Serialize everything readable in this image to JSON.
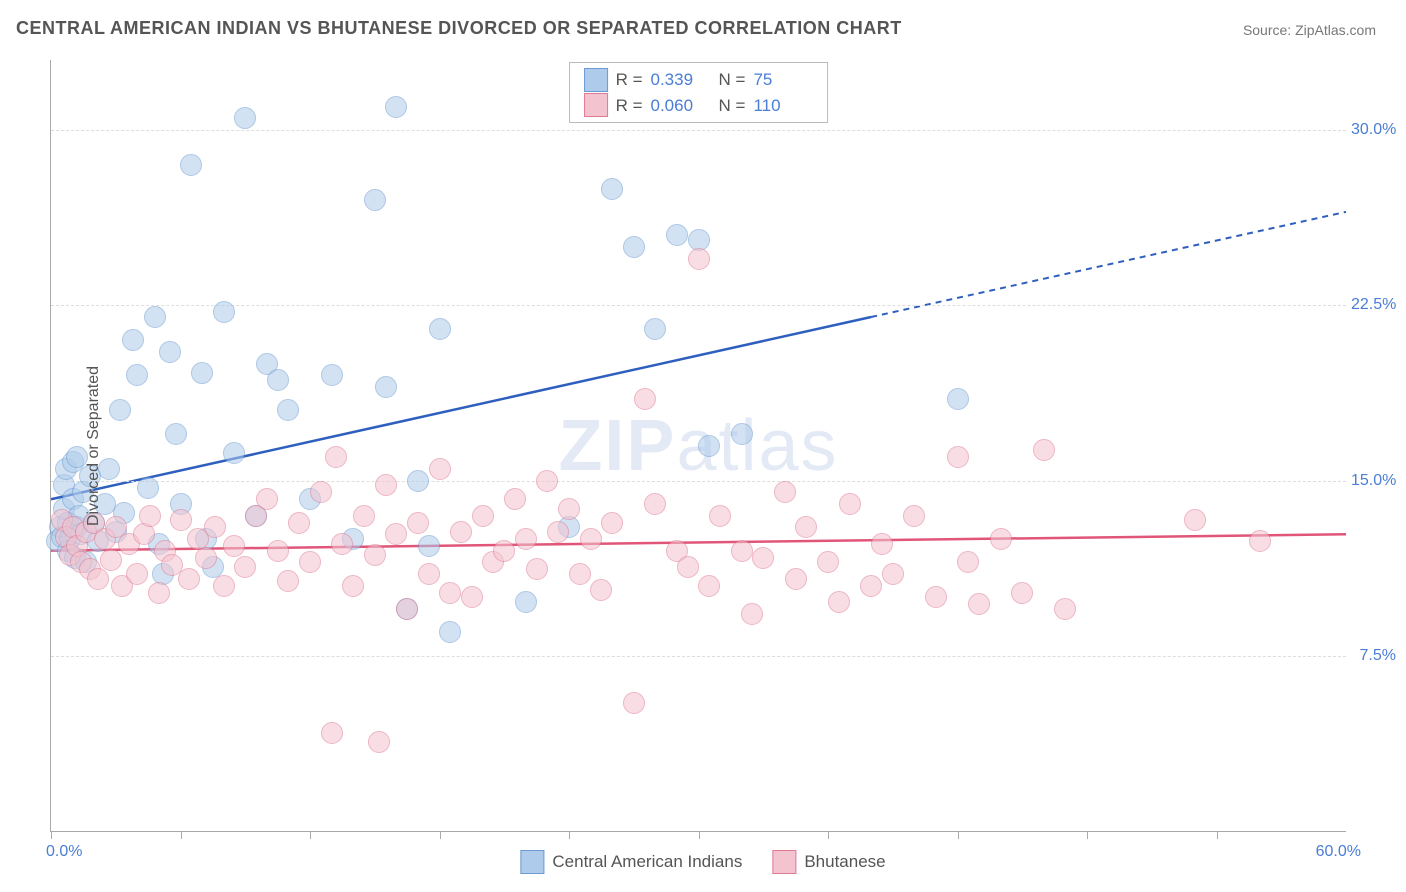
{
  "title": "CENTRAL AMERICAN INDIAN VS BHUTANESE DIVORCED OR SEPARATED CORRELATION CHART",
  "source": "Source: ZipAtlas.com",
  "watermark_bold": "ZIP",
  "watermark_light": "atlas",
  "ylabel": "Divorced or Separated",
  "chart": {
    "type": "scatter",
    "xlim": [
      0,
      60
    ],
    "ylim": [
      0,
      33
    ],
    "x_min_label": "0.0%",
    "x_max_label": "60.0%",
    "y_ticks": [
      7.5,
      15.0,
      22.5,
      30.0
    ],
    "y_tick_labels": [
      "7.5%",
      "15.0%",
      "22.5%",
      "30.0%"
    ],
    "x_tick_positions": [
      0,
      6,
      12,
      18,
      24,
      30,
      36,
      42,
      48,
      54
    ],
    "grid_color": "#dddddd",
    "background_color": "#ffffff",
    "marker_radius": 10,
    "marker_opacity": 0.55,
    "series": [
      {
        "name": "Central American Indians",
        "color_fill": "#aecbeb",
        "color_stroke": "#6b9bd1",
        "line_color": "#2e5fbf",
        "reg_start": [
          0,
          14.2
        ],
        "reg_solid_end": [
          38,
          22.0
        ],
        "reg_dash_end": [
          60,
          26.5
        ],
        "r": "0.339",
        "n": "75",
        "points": [
          [
            0.3,
            12.4
          ],
          [
            0.4,
            13.0
          ],
          [
            0.5,
            12.6
          ],
          [
            0.6,
            13.8
          ],
          [
            0.6,
            14.8
          ],
          [
            0.7,
            15.5
          ],
          [
            0.8,
            12.0
          ],
          [
            0.8,
            13.2
          ],
          [
            0.9,
            12.5
          ],
          [
            1.0,
            14.2
          ],
          [
            1.0,
            15.8
          ],
          [
            1.1,
            11.7
          ],
          [
            1.2,
            13.0
          ],
          [
            1.2,
            16.0
          ],
          [
            1.3,
            13.5
          ],
          [
            1.4,
            12.7
          ],
          [
            1.5,
            14.5
          ],
          [
            1.6,
            11.5
          ],
          [
            1.8,
            15.2
          ],
          [
            2.0,
            13.2
          ],
          [
            2.2,
            12.4
          ],
          [
            2.5,
            14.0
          ],
          [
            2.7,
            15.5
          ],
          [
            3.0,
            12.8
          ],
          [
            3.2,
            18.0
          ],
          [
            3.4,
            13.6
          ],
          [
            3.8,
            21.0
          ],
          [
            4.0,
            19.5
          ],
          [
            4.5,
            14.7
          ],
          [
            4.8,
            22.0
          ],
          [
            5.0,
            12.3
          ],
          [
            5.2,
            11.0
          ],
          [
            5.5,
            20.5
          ],
          [
            5.8,
            17.0
          ],
          [
            6.0,
            14.0
          ],
          [
            6.5,
            28.5
          ],
          [
            7.0,
            19.6
          ],
          [
            7.2,
            12.5
          ],
          [
            7.5,
            11.3
          ],
          [
            8.0,
            22.2
          ],
          [
            8.5,
            16.2
          ],
          [
            9.0,
            30.5
          ],
          [
            9.5,
            13.5
          ],
          [
            10.0,
            20.0
          ],
          [
            10.5,
            19.3
          ],
          [
            11.0,
            18.0
          ],
          [
            12.0,
            14.2
          ],
          [
            13.0,
            19.5
          ],
          [
            14.0,
            12.5
          ],
          [
            15.0,
            27.0
          ],
          [
            15.5,
            19.0
          ],
          [
            16.0,
            31.0
          ],
          [
            16.5,
            9.5
          ],
          [
            17.0,
            15.0
          ],
          [
            17.5,
            12.2
          ],
          [
            18.0,
            21.5
          ],
          [
            18.5,
            8.5
          ],
          [
            22.0,
            9.8
          ],
          [
            24.0,
            13.0
          ],
          [
            26.0,
            27.5
          ],
          [
            27.0,
            25.0
          ],
          [
            28.0,
            21.5
          ],
          [
            29.0,
            25.5
          ],
          [
            30.0,
            25.3
          ],
          [
            30.5,
            16.5
          ],
          [
            32.0,
            17.0
          ],
          [
            42.0,
            18.5
          ]
        ]
      },
      {
        "name": "Bhutanese",
        "color_fill": "#f3c4cf",
        "color_stroke": "#e07a93",
        "line_color": "#e05578",
        "reg_start": [
          0,
          12.0
        ],
        "reg_solid_end": [
          60,
          12.7
        ],
        "reg_dash_end": null,
        "r": "0.060",
        "n": "110",
        "points": [
          [
            0.5,
            13.3
          ],
          [
            0.7,
            12.6
          ],
          [
            0.9,
            11.8
          ],
          [
            1.0,
            13.0
          ],
          [
            1.2,
            12.2
          ],
          [
            1.4,
            11.5
          ],
          [
            1.6,
            12.8
          ],
          [
            1.8,
            11.2
          ],
          [
            2.0,
            13.2
          ],
          [
            2.2,
            10.8
          ],
          [
            2.5,
            12.5
          ],
          [
            2.8,
            11.6
          ],
          [
            3.0,
            13.0
          ],
          [
            3.3,
            10.5
          ],
          [
            3.6,
            12.3
          ],
          [
            4.0,
            11.0
          ],
          [
            4.3,
            12.7
          ],
          [
            4.6,
            13.5
          ],
          [
            5.0,
            10.2
          ],
          [
            5.3,
            12.0
          ],
          [
            5.6,
            11.4
          ],
          [
            6.0,
            13.3
          ],
          [
            6.4,
            10.8
          ],
          [
            6.8,
            12.5
          ],
          [
            7.2,
            11.7
          ],
          [
            7.6,
            13.0
          ],
          [
            8.0,
            10.5
          ],
          [
            8.5,
            12.2
          ],
          [
            9.0,
            11.3
          ],
          [
            9.5,
            13.5
          ],
          [
            10.0,
            14.2
          ],
          [
            10.5,
            12.0
          ],
          [
            11.0,
            10.7
          ],
          [
            11.5,
            13.2
          ],
          [
            12.0,
            11.5
          ],
          [
            12.5,
            14.5
          ],
          [
            13.0,
            4.2
          ],
          [
            13.2,
            16.0
          ],
          [
            13.5,
            12.3
          ],
          [
            14.0,
            10.5
          ],
          [
            14.5,
            13.5
          ],
          [
            15.0,
            11.8
          ],
          [
            15.2,
            3.8
          ],
          [
            15.5,
            14.8
          ],
          [
            16.0,
            12.7
          ],
          [
            16.5,
            9.5
          ],
          [
            17.0,
            13.2
          ],
          [
            17.5,
            11.0
          ],
          [
            18.0,
            15.5
          ],
          [
            18.5,
            10.2
          ],
          [
            19.0,
            12.8
          ],
          [
            19.5,
            10.0
          ],
          [
            20.0,
            13.5
          ],
          [
            20.5,
            11.5
          ],
          [
            21.0,
            12.0
          ],
          [
            21.5,
            14.2
          ],
          [
            22.0,
            12.5
          ],
          [
            22.5,
            11.2
          ],
          [
            23.0,
            15.0
          ],
          [
            23.5,
            12.8
          ],
          [
            24.0,
            13.8
          ],
          [
            24.5,
            11.0
          ],
          [
            25.0,
            12.5
          ],
          [
            25.5,
            10.3
          ],
          [
            26.0,
            13.2
          ],
          [
            27.0,
            5.5
          ],
          [
            27.5,
            18.5
          ],
          [
            28.0,
            14.0
          ],
          [
            29.0,
            12.0
          ],
          [
            29.5,
            11.3
          ],
          [
            30.0,
            24.5
          ],
          [
            30.5,
            10.5
          ],
          [
            31.0,
            13.5
          ],
          [
            32.0,
            12.0
          ],
          [
            32.5,
            9.3
          ],
          [
            33.0,
            11.7
          ],
          [
            34.0,
            14.5
          ],
          [
            34.5,
            10.8
          ],
          [
            35.0,
            13.0
          ],
          [
            36.0,
            11.5
          ],
          [
            36.5,
            9.8
          ],
          [
            37.0,
            14.0
          ],
          [
            38.0,
            10.5
          ],
          [
            38.5,
            12.3
          ],
          [
            39.0,
            11.0
          ],
          [
            40.0,
            13.5
          ],
          [
            41.0,
            10.0
          ],
          [
            42.0,
            16.0
          ],
          [
            42.5,
            11.5
          ],
          [
            43.0,
            9.7
          ],
          [
            44.0,
            12.5
          ],
          [
            45.0,
            10.2
          ],
          [
            46.0,
            16.3
          ],
          [
            47.0,
            9.5
          ],
          [
            53.0,
            13.3
          ],
          [
            56.0,
            12.4
          ]
        ]
      }
    ]
  },
  "legend_top": {
    "r_label": "R =",
    "n_label": "N ="
  },
  "legend_bottom": [
    {
      "label": "Central American Indians"
    },
    {
      "label": "Bhutanese"
    }
  ]
}
